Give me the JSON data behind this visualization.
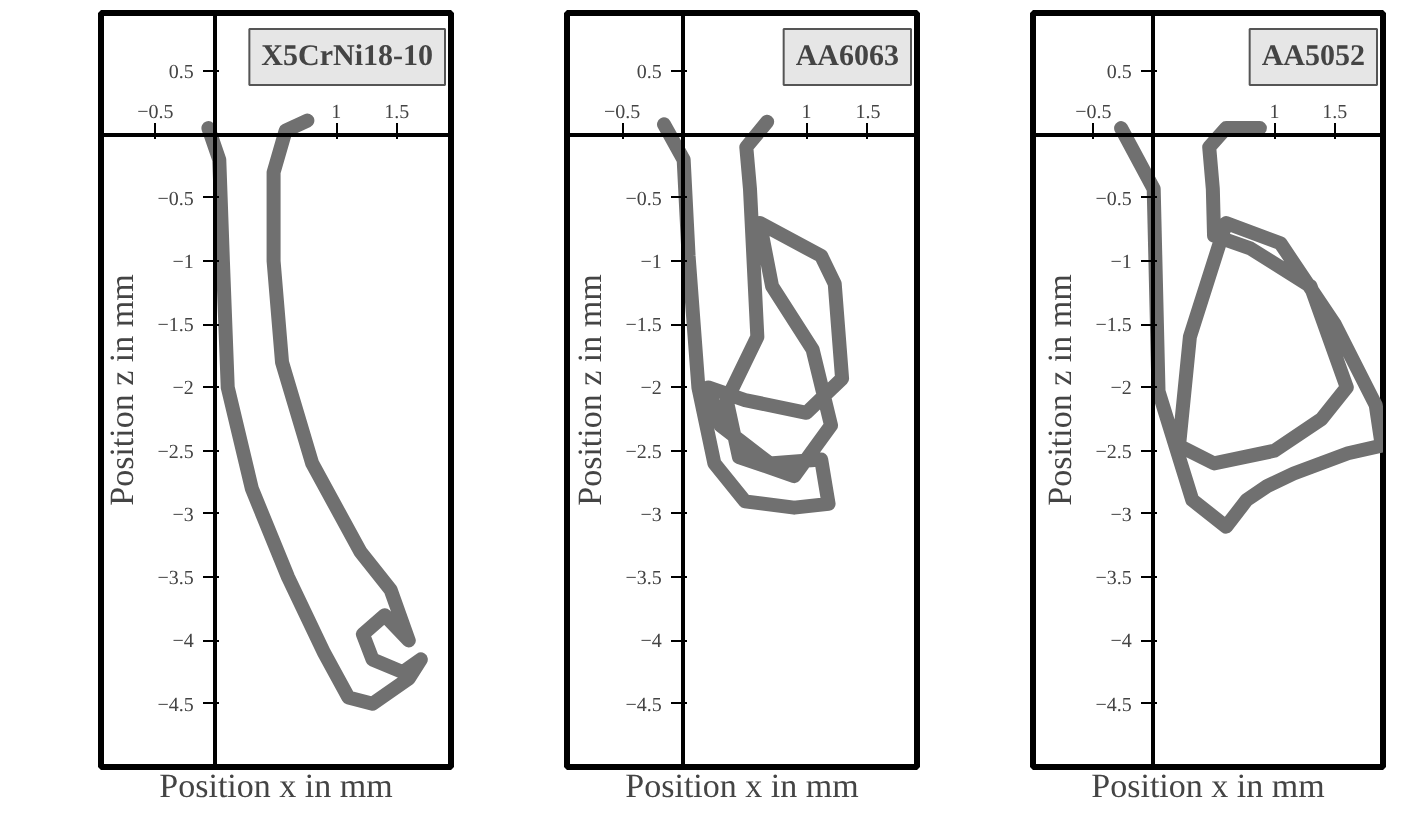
{
  "chart_data": [
    {
      "type": "line",
      "title": "X5CrNi18-10",
      "xlabel": "Position x in mm",
      "ylabel": "Position z in mm",
      "xlim": [
        -0.95,
        1.95
      ],
      "ylim": [
        -5,
        0.96
      ],
      "xticks": [
        -0.5,
        1,
        1.5
      ],
      "yticks": [
        0.5,
        -0.5,
        -1,
        -1.5,
        -2,
        -2.5,
        -3,
        -3.5,
        -4,
        -4.5
      ],
      "grid": false,
      "series": [
        {
          "color": "#707070",
          "x": [
            -0.06,
            0.03,
            0.06,
            0.1,
            0.3,
            0.6,
            0.9,
            1.1,
            1.3,
            1.6,
            1.7,
            1.55,
            1.3,
            1.22,
            1.4,
            1.6,
            1.45,
            1.2,
            0.8,
            0.55,
            0.48,
            0.48,
            0.58,
            0.76
          ],
          "values": [
            0.05,
            -0.2,
            -1.0,
            -2.0,
            -2.8,
            -3.5,
            -4.1,
            -4.45,
            -4.5,
            -4.3,
            -4.15,
            -4.25,
            -4.15,
            -3.95,
            -3.8,
            -4.0,
            -3.6,
            -3.3,
            -2.6,
            -1.8,
            -1.0,
            -0.3,
            0.03,
            0.11
          ]
        }
      ]
    },
    {
      "type": "line",
      "title": "AA6063",
      "xlabel": "Position x in mm",
      "ylabel": "Position z in mm",
      "xlim": [
        -0.95,
        1.9
      ],
      "ylim": [
        -5,
        0.96
      ],
      "xticks": [
        -0.5,
        1,
        1.5
      ],
      "yticks": [
        0.5,
        -0.5,
        -1,
        -1.5,
        -2,
        -2.5,
        -3,
        -3.5,
        -4,
        -4.5
      ],
      "grid": false,
      "series": [
        {
          "color": "#707070",
          "x": [
            -0.16,
            0.0,
            0.04,
            0.12,
            0.25,
            0.5,
            0.9,
            1.18,
            1.12,
            0.7,
            0.3,
            0.2,
            0.5,
            1.0,
            1.29,
            1.23,
            1.12,
            0.62,
            0.72,
            1.05,
            1.2,
            0.9,
            0.45,
            0.35,
            0.6,
            0.54,
            0.51,
            0.68
          ],
          "values": [
            0.08,
            -0.2,
            -0.96,
            -2.0,
            -2.6,
            -2.9,
            -2.95,
            -2.92,
            -2.57,
            -2.6,
            -2.3,
            -2.0,
            -2.1,
            -2.2,
            -1.93,
            -1.18,
            -0.96,
            -0.7,
            -1.2,
            -1.7,
            -2.3,
            -2.7,
            -2.55,
            -2.1,
            -1.6,
            -0.43,
            -0.1,
            0.1
          ]
        }
      ]
    },
    {
      "type": "line",
      "title": "AA5052",
      "xlabel": "Position x in mm",
      "ylabel": "Position z in mm",
      "xlim": [
        -1.0,
        1.9
      ],
      "ylim": [
        -5,
        0.96
      ],
      "xticks": [
        -0.5,
        1,
        1.5
      ],
      "yticks": [
        0.5,
        -0.5,
        -1,
        -1.5,
        -2,
        -2.5,
        -3,
        -3.5,
        -4,
        -4.5
      ],
      "grid": false,
      "series": [
        {
          "color": "#707070",
          "x": [
            -0.27,
            0.0,
            0.04,
            0.32,
            0.6,
            0.77,
            0.94,
            1.16,
            1.61,
            1.89,
            1.84,
            1.5,
            1.05,
            0.6,
            0.3,
            0.21,
            0.5,
            1.0,
            1.39,
            1.6,
            1.3,
            0.8,
            0.5,
            0.49,
            0.46,
            0.6,
            0.88
          ],
          "values": [
            0.05,
            -0.43,
            -2.03,
            -2.89,
            -3.1,
            -2.89,
            -2.78,
            -2.68,
            -2.52,
            -2.46,
            -2.14,
            -1.5,
            -0.86,
            -0.7,
            -1.6,
            -2.46,
            -2.6,
            -2.5,
            -2.25,
            -2.0,
            -1.2,
            -0.9,
            -0.8,
            -0.43,
            -0.1,
            0.05,
            0.05
          ]
        }
      ]
    }
  ]
}
